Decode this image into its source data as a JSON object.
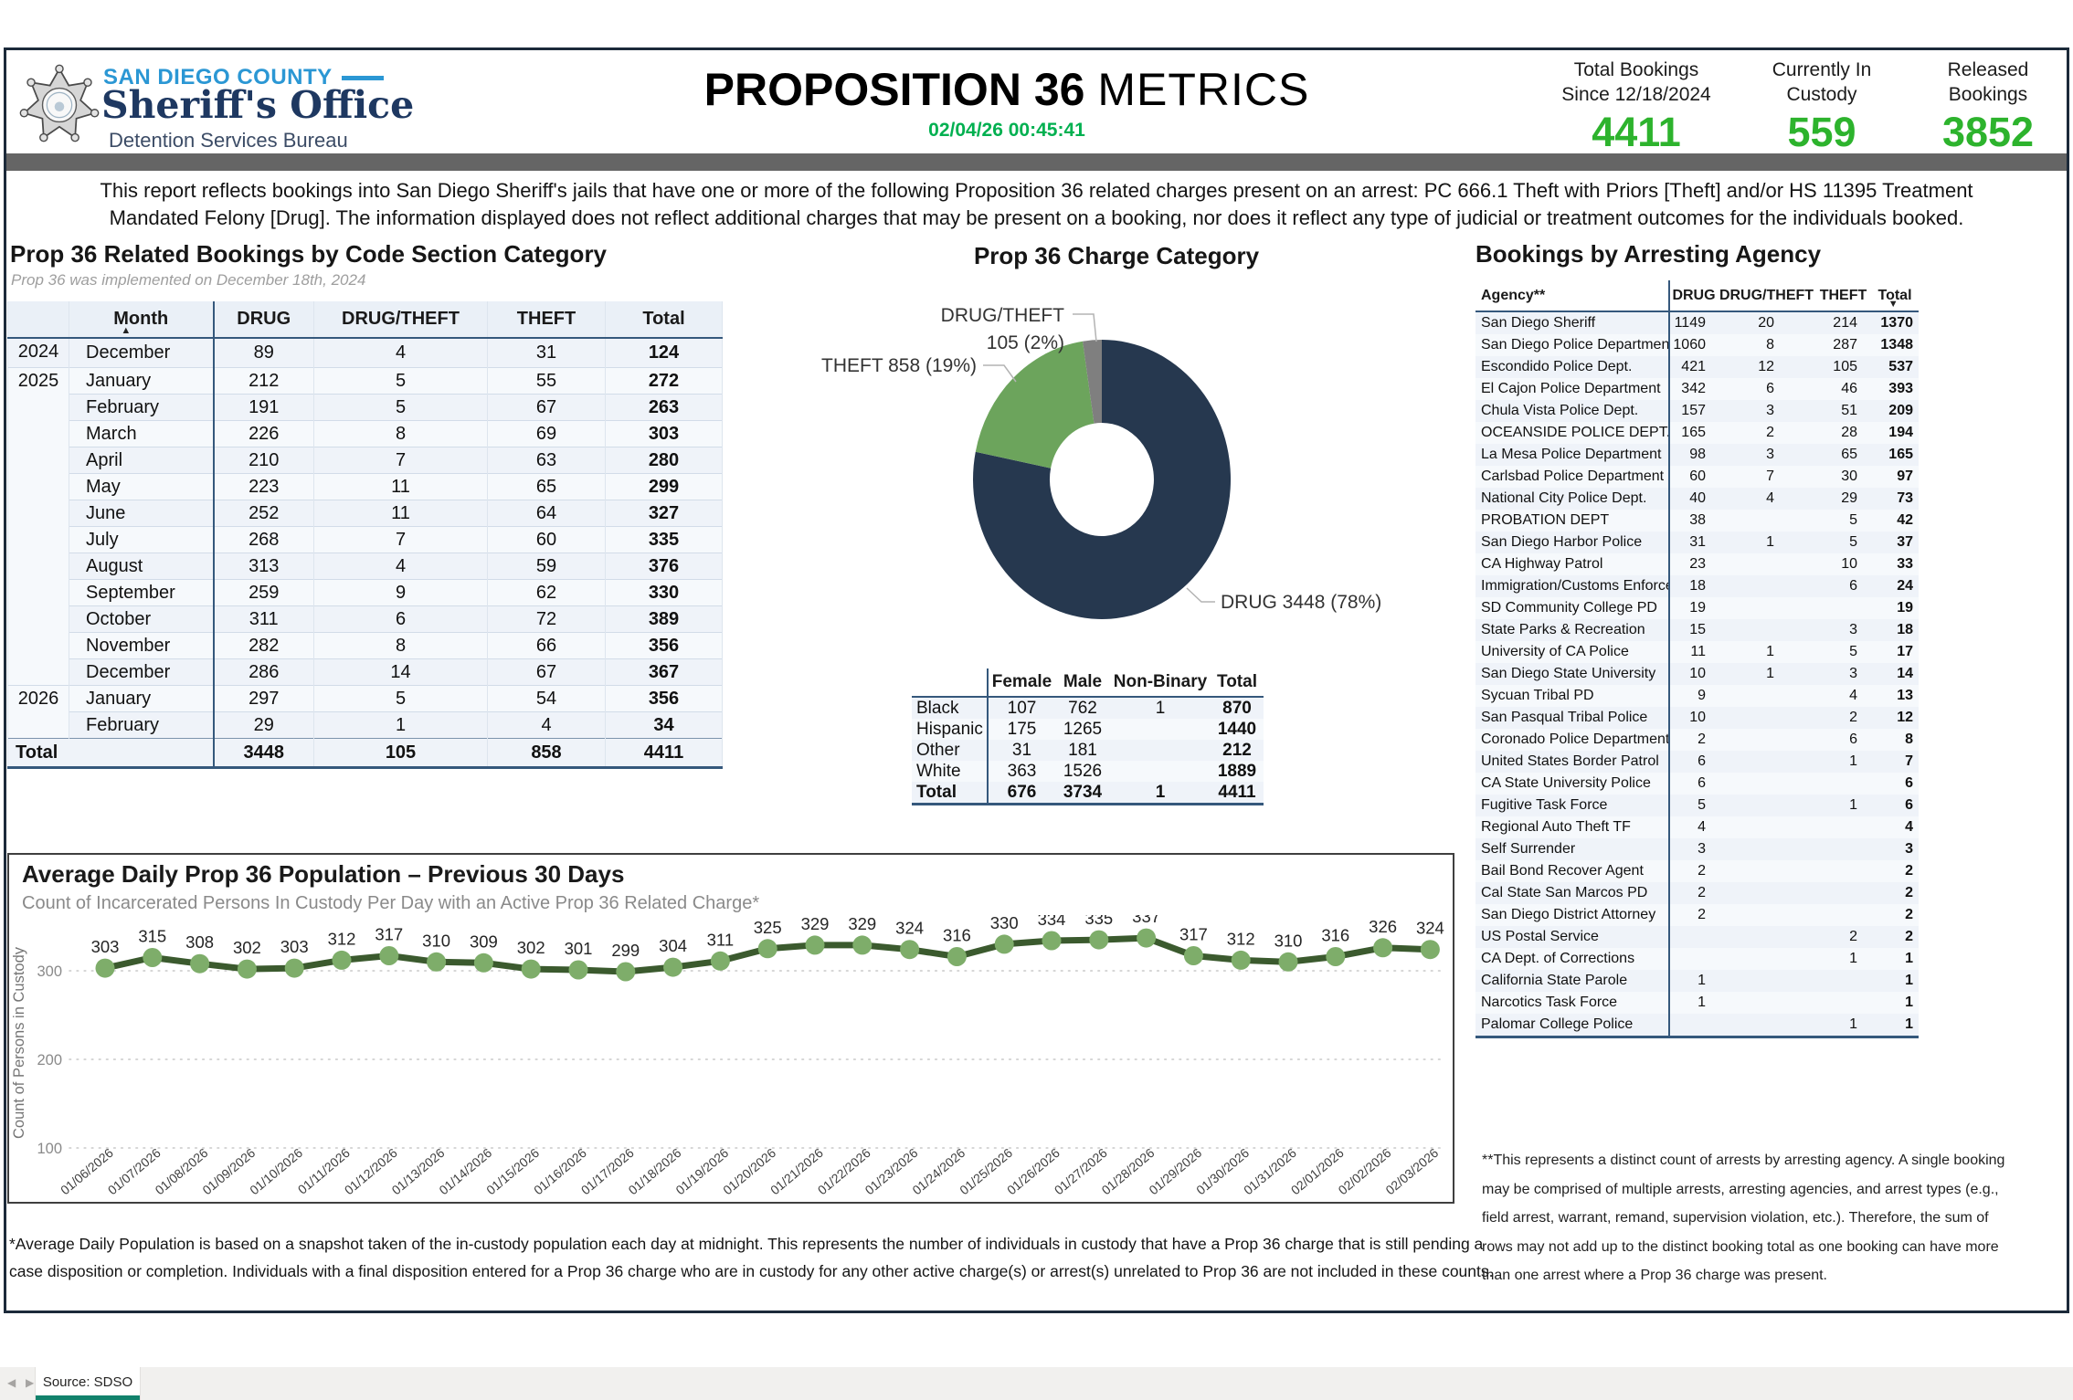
{
  "header": {
    "agency_top": "SAN DIEGO COUNTY",
    "agency_name": "Sheriff's Office",
    "agency_sub": "Detention Services Bureau",
    "title_bold": "PROPOSITION 36",
    "title_light": "METRICS",
    "timestamp": "02/04/26 00:45:41",
    "accent_green": "#2db32d",
    "kpis": [
      {
        "label1": "Total Bookings",
        "label2": "Since 12/18/2024",
        "value": "4411"
      },
      {
        "label1": "Currently In",
        "label2": "Custody",
        "value": "559"
      },
      {
        "label1": "Released",
        "label2": "Bookings",
        "value": "3852"
      }
    ]
  },
  "intro": "This report reflects bookings into San Diego Sheriff's jails that have one or more of the following Proposition 36 related charges present on an arrest: PC 666.1 Theft with Priors [Theft] and/or HS 11395 Treatment\nMandated Felony [Drug]. The information displayed does not reflect additional charges that may be present on a booking, nor does it reflect any type of judicial or treatment outcomes for the individuals booked.",
  "bookings_table": {
    "title": "Prop 36 Related Bookings by Code Section Category",
    "subtitle": "Prop 36 was implemented on December 18th, 2024",
    "columns": [
      "Month",
      "DRUG",
      "DRUG/THEFT",
      "THEFT",
      "Total"
    ],
    "rows": [
      {
        "year": "2024",
        "month": "December",
        "drug": "89",
        "drug_theft": "4",
        "theft": "31",
        "total": "124"
      },
      {
        "year": "2025",
        "month": "January",
        "drug": "212",
        "drug_theft": "5",
        "theft": "55",
        "total": "272"
      },
      {
        "year": "",
        "month": "February",
        "drug": "191",
        "drug_theft": "5",
        "theft": "67",
        "total": "263"
      },
      {
        "year": "",
        "month": "March",
        "drug": "226",
        "drug_theft": "8",
        "theft": "69",
        "total": "303"
      },
      {
        "year": "",
        "month": "April",
        "drug": "210",
        "drug_theft": "7",
        "theft": "63",
        "total": "280"
      },
      {
        "year": "",
        "month": "May",
        "drug": "223",
        "drug_theft": "11",
        "theft": "65",
        "total": "299"
      },
      {
        "year": "",
        "month": "June",
        "drug": "252",
        "drug_theft": "11",
        "theft": "64",
        "total": "327"
      },
      {
        "year": "",
        "month": "July",
        "drug": "268",
        "drug_theft": "7",
        "theft": "60",
        "total": "335"
      },
      {
        "year": "",
        "month": "August",
        "drug": "313",
        "drug_theft": "4",
        "theft": "59",
        "total": "376"
      },
      {
        "year": "",
        "month": "September",
        "drug": "259",
        "drug_theft": "9",
        "theft": "62",
        "total": "330"
      },
      {
        "year": "",
        "month": "October",
        "drug": "311",
        "drug_theft": "6",
        "theft": "72",
        "total": "389"
      },
      {
        "year": "",
        "month": "November",
        "drug": "282",
        "drug_theft": "8",
        "theft": "66",
        "total": "356"
      },
      {
        "year": "",
        "month": "December",
        "drug": "286",
        "drug_theft": "14",
        "theft": "67",
        "total": "367"
      },
      {
        "year": "2026",
        "month": "January",
        "drug": "297",
        "drug_theft": "5",
        "theft": "54",
        "total": "356"
      },
      {
        "year": "",
        "month": "February",
        "drug": "29",
        "drug_theft": "1",
        "theft": "4",
        "total": "34"
      }
    ],
    "total_row": {
      "label": "Total",
      "drug": "3448",
      "drug_theft": "105",
      "theft": "858",
      "total": "4411"
    }
  },
  "demographics_table": {
    "columns": [
      "",
      "Female",
      "Male",
      "Non-Binary",
      "Total"
    ],
    "rows": [
      [
        "Black",
        "107",
        "762",
        "1",
        "870"
      ],
      [
        "Hispanic",
        "175",
        "1265",
        "",
        "1440"
      ],
      [
        "Other",
        "31",
        "181",
        "",
        "212"
      ],
      [
        "White",
        "363",
        "1526",
        "",
        "1889"
      ],
      [
        "Total",
        "676",
        "3734",
        "1",
        "4411"
      ]
    ]
  },
  "agency_table": {
    "title": "Bookings by Arresting Agency",
    "columns": [
      "Agency**",
      "DRUG",
      "DRUG/THEFT",
      "THEFT",
      "Total"
    ],
    "rows": [
      [
        "San Diego Sheriff",
        "1149",
        "20",
        "214",
        "1370"
      ],
      [
        "San Diego Police Department",
        "1060",
        "8",
        "287",
        "1348"
      ],
      [
        "Escondido Police Dept.",
        "421",
        "12",
        "105",
        "537"
      ],
      [
        "El Cajon Police Department",
        "342",
        "6",
        "46",
        "393"
      ],
      [
        "Chula Vista Police Dept.",
        "157",
        "3",
        "51",
        "209"
      ],
      [
        "OCEANSIDE POLICE DEPT.",
        "165",
        "2",
        "28",
        "194"
      ],
      [
        "La Mesa Police Department",
        "98",
        "3",
        "65",
        "165"
      ],
      [
        "Carlsbad Police Department",
        "60",
        "7",
        "30",
        "97"
      ],
      [
        "National City Police Dept.",
        "40",
        "4",
        "29",
        "73"
      ],
      [
        "PROBATION DEPT",
        "38",
        "",
        "5",
        "42"
      ],
      [
        "San Diego Harbor Police",
        "31",
        "1",
        "5",
        "37"
      ],
      [
        "CA Highway Patrol",
        "23",
        "",
        "10",
        "33"
      ],
      [
        "Immigration/Customs Enforce",
        "18",
        "",
        "6",
        "24"
      ],
      [
        "SD Community College PD",
        "19",
        "",
        "",
        "19"
      ],
      [
        "State Parks & Recreation",
        "15",
        "",
        "3",
        "18"
      ],
      [
        "University of CA Police",
        "11",
        "1",
        "5",
        "17"
      ],
      [
        "San Diego State University",
        "10",
        "1",
        "3",
        "14"
      ],
      [
        "Sycuan Tribal PD",
        "9",
        "",
        "4",
        "13"
      ],
      [
        "San Pasqual Tribal Police",
        "10",
        "",
        "2",
        "12"
      ],
      [
        "Coronado Police Department",
        "2",
        "",
        "6",
        "8"
      ],
      [
        "United States Border Patrol",
        "6",
        "",
        "1",
        "7"
      ],
      [
        "CA State University Police",
        "6",
        "",
        "",
        "6"
      ],
      [
        "Fugitive Task Force",
        "5",
        "",
        "1",
        "6"
      ],
      [
        "Regional Auto Theft TF",
        "4",
        "",
        "",
        "4"
      ],
      [
        "Self Surrender",
        "3",
        "",
        "",
        "3"
      ],
      [
        "Bail Bond Recover Agent",
        "2",
        "",
        "",
        "2"
      ],
      [
        "Cal State San Marcos PD",
        "2",
        "",
        "",
        "2"
      ],
      [
        "San Diego District Attorney",
        "2",
        "",
        "",
        "2"
      ],
      [
        "US Postal Service",
        "",
        "",
        "2",
        "2"
      ],
      [
        "CA Dept. of Corrections",
        "",
        "",
        "1",
        "1"
      ],
      [
        "California State Parole",
        "1",
        "",
        "",
        "1"
      ],
      [
        "Narcotics Task Force",
        "1",
        "",
        "",
        "1"
      ],
      [
        "Palomar College Police",
        "",
        "",
        "1",
        "1"
      ]
    ]
  },
  "chart_data": [
    {
      "type": "pie",
      "title": "Prop 36 Charge Category",
      "categories": [
        "DRUG",
        "THEFT",
        "DRUG/THEFT"
      ],
      "values": [
        3448,
        858,
        105
      ],
      "percent_labels": [
        "78%",
        "19%",
        "2%"
      ],
      "colors": [
        "#26384f",
        "#6ca45c",
        "#7f7f7f"
      ],
      "donut": true
    },
    {
      "type": "line",
      "title": "Average Daily Prop 36 Population – Previous 30 Days",
      "subtitle": "Count of Incarcerated Persons In Custody Per Day with an Active Prop 36 Related Charge*",
      "ylabel": "Count of Persons in Custody",
      "ylim": [
        0,
        400
      ],
      "yticks": [
        100,
        200,
        300
      ],
      "line_color": "#3b5a2e",
      "marker_color": "#7ead6a",
      "x": [
        "01/06/2026",
        "01/07/2026",
        "01/08/2026",
        "01/09/2026",
        "01/10/2026",
        "01/11/2026",
        "01/12/2026",
        "01/13/2026",
        "01/14/2026",
        "01/15/2026",
        "01/16/2026",
        "01/17/2026",
        "01/18/2026",
        "01/19/2026",
        "01/20/2026",
        "01/21/2026",
        "01/22/2026",
        "01/23/2026",
        "01/24/2026",
        "01/25/2026",
        "01/26/2026",
        "01/27/2026",
        "01/28/2026",
        "01/29/2026",
        "01/30/2026",
        "01/31/2026",
        "02/01/2026",
        "02/02/2026",
        "02/03/2026"
      ],
      "values": [
        303,
        315,
        308,
        302,
        303,
        312,
        317,
        310,
        309,
        302,
        301,
        299,
        304,
        311,
        325,
        329,
        329,
        324,
        316,
        330,
        334,
        335,
        337,
        317,
        312,
        310,
        316,
        326,
        324
      ]
    }
  ],
  "footnotes": {
    "left": "*Average Daily Population is based on a snapshot taken of the in-custody population each day at midnight. This represents the number of individuals in custody that have a Prop 36 charge that is still pending a\ncase disposition or completion. Individuals with a final disposition entered for a Prop 36 charge who are in custody for any other active charge(s) or arrest(s) unrelated to Prop 36 are not included in these counts.",
    "right": "**This represents a distinct count of arrests by arresting agency. A single booking\nmay be comprised of multiple arrests, arresting agencies, and arrest types (e.g.,\nfield arrest, warrant, remand, supervision violation, etc.). Therefore, the sum of\nrows may not add up to the distinct booking total as one booking can have more\nthan one arrest where a Prop 36 charge was present."
  },
  "tab_bar": {
    "tab_label": "Source: SDSO"
  }
}
